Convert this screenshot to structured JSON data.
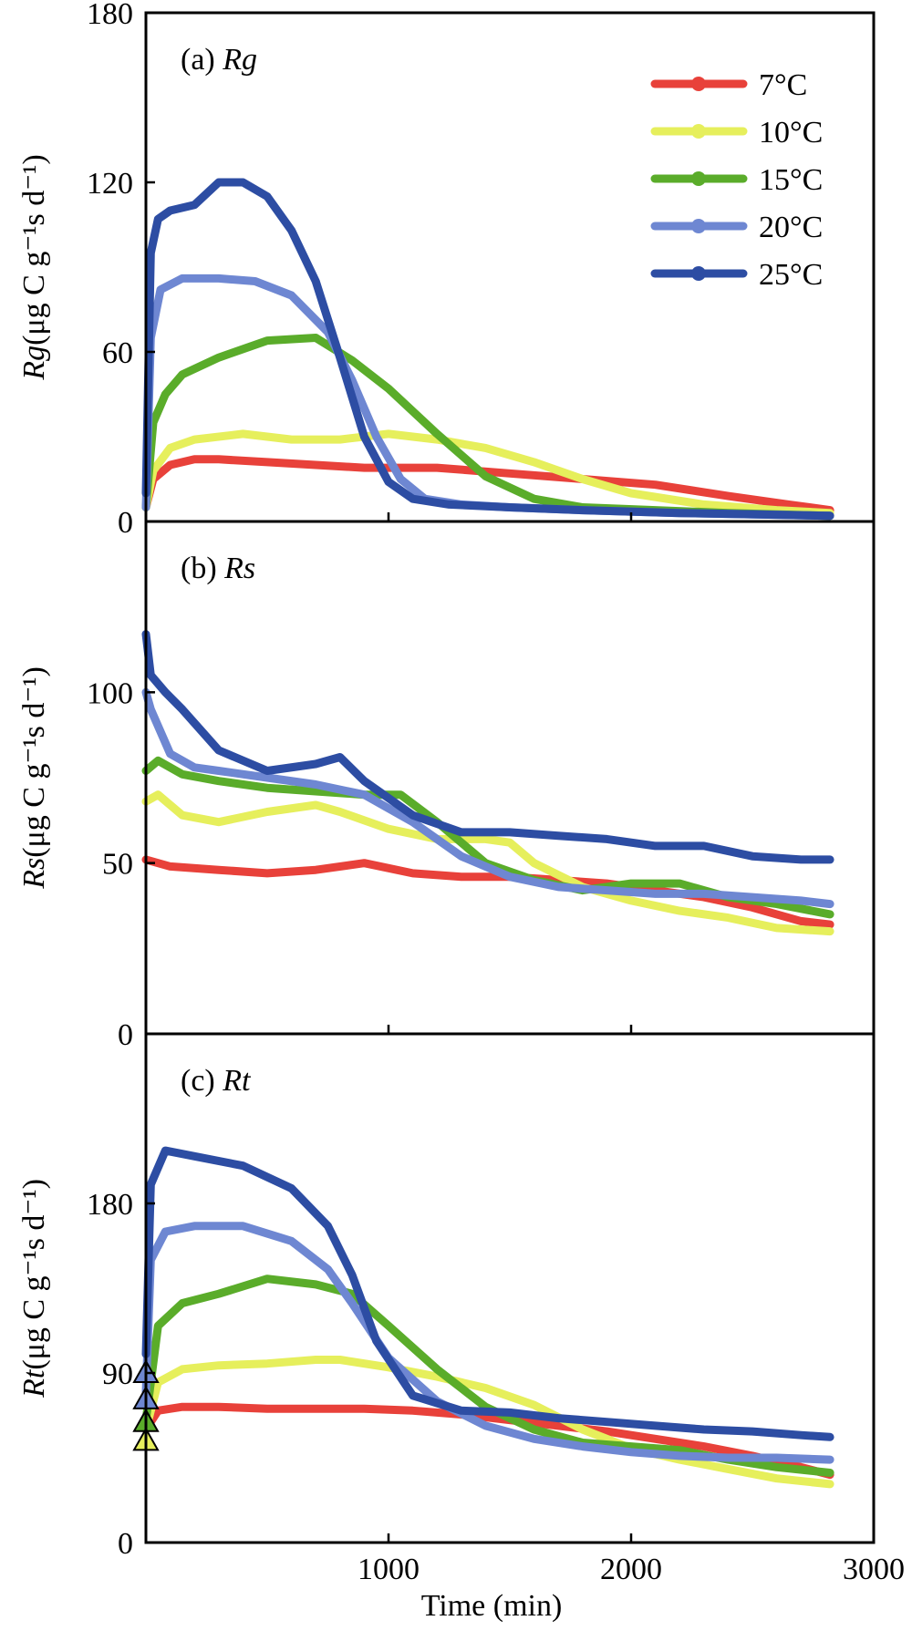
{
  "chart_data": [
    {
      "type": "line",
      "panel_label": "(a)",
      "panel_symbol": "Rg",
      "ylabel_symbol": "Rg",
      "ylabel_unit": "(μg C g⁻¹s d⁻¹)",
      "xlim": [
        0,
        3000
      ],
      "ylim": [
        0,
        180
      ],
      "yticks": [
        0,
        60,
        120,
        180
      ],
      "legend": {
        "placement": "top-right",
        "entries": [
          {
            "label": "7°C",
            "color": "#e8413a"
          },
          {
            "label": "10°C",
            "color": "#e6ef5c"
          },
          {
            "label": "15°C",
            "color": "#5aac2a"
          },
          {
            "label": "20°C",
            "color": "#6e87d2"
          },
          {
            "label": "25°C",
            "color": "#2d4da3"
          }
        ]
      },
      "series": [
        {
          "name": "7°C",
          "color": "#e8413a",
          "x": [
            0,
            30,
            100,
            200,
            300,
            500,
            700,
            900,
            1200,
            1500,
            1800,
            2100,
            2400,
            2650,
            2820
          ],
          "y": [
            5,
            15,
            20,
            22,
            22,
            21,
            20,
            19,
            19,
            17,
            15,
            13,
            9,
            6,
            4
          ]
        },
        {
          "name": "10°C",
          "color": "#e6ef5c",
          "x": [
            0,
            30,
            100,
            200,
            400,
            600,
            800,
            1000,
            1200,
            1400,
            1600,
            1800,
            2000,
            2300,
            2600,
            2820
          ],
          "y": [
            5,
            18,
            26,
            29,
            31,
            29,
            29,
            31,
            29,
            26,
            21,
            15,
            10,
            6,
            4,
            3
          ]
        },
        {
          "name": "15°C",
          "color": "#5aac2a",
          "x": [
            0,
            30,
            80,
            150,
            300,
            500,
            700,
            850,
            1000,
            1200,
            1400,
            1600,
            1800,
            2100,
            2400,
            2820
          ],
          "y": [
            5,
            35,
            45,
            52,
            58,
            64,
            65,
            57,
            47,
            31,
            16,
            8,
            5,
            4,
            3,
            2
          ]
        },
        {
          "name": "20°C",
          "color": "#6e87d2",
          "x": [
            0,
            20,
            60,
            150,
            300,
            450,
            600,
            750,
            850,
            950,
            1050,
            1150,
            1300,
            1500,
            1800,
            2200,
            2820
          ],
          "y": [
            5,
            65,
            82,
            86,
            86,
            85,
            80,
            67,
            50,
            30,
            15,
            8,
            6,
            5,
            4,
            3,
            2
          ]
        },
        {
          "name": "25°C",
          "color": "#2d4da3",
          "x": [
            0,
            20,
            50,
            100,
            200,
            300,
            400,
            500,
            600,
            700,
            800,
            900,
            1000,
            1100,
            1250,
            1500,
            1800,
            2200,
            2820
          ],
          "y": [
            10,
            95,
            107,
            110,
            112,
            120,
            120,
            115,
            103,
            85,
            58,
            30,
            14,
            8,
            6,
            5,
            4,
            3,
            2
          ]
        }
      ]
    },
    {
      "type": "line",
      "panel_label": "(b)",
      "panel_symbol": "Rs",
      "ylabel_symbol": "Rs",
      "ylabel_unit": "(μg C g⁻¹s d⁻¹)",
      "xlim": [
        0,
        3000
      ],
      "ylim": [
        0,
        150
      ],
      "yticks": [
        0,
        50,
        100
      ],
      "series": [
        {
          "name": "7°C",
          "color": "#e8413a",
          "x": [
            0,
            100,
            300,
            500,
            700,
            900,
            1100,
            1300,
            1500,
            1700,
            1900,
            2100,
            2300,
            2500,
            2700,
            2820
          ],
          "y": [
            51,
            49,
            48,
            47,
            48,
            50,
            47,
            46,
            46,
            45,
            44,
            42,
            40,
            37,
            33,
            32
          ]
        },
        {
          "name": "10°C",
          "color": "#e6ef5c",
          "x": [
            0,
            50,
            150,
            300,
            500,
            700,
            800,
            1000,
            1200,
            1400,
            1500,
            1600,
            1800,
            2000,
            2200,
            2400,
            2600,
            2820
          ],
          "y": [
            68,
            70,
            64,
            62,
            65,
            67,
            65,
            60,
            57,
            57,
            56,
            50,
            43,
            39,
            36,
            34,
            31,
            30
          ]
        },
        {
          "name": "15°C",
          "color": "#5aac2a",
          "x": [
            0,
            50,
            150,
            300,
            500,
            700,
            900,
            1050,
            1200,
            1400,
            1600,
            1800,
            2000,
            2200,
            2400,
            2600,
            2820
          ],
          "y": [
            77,
            80,
            76,
            74,
            72,
            71,
            70,
            70,
            62,
            50,
            45,
            42,
            44,
            44,
            40,
            38,
            35
          ]
        },
        {
          "name": "20°C",
          "color": "#6e87d2",
          "x": [
            0,
            20,
            100,
            200,
            300,
            500,
            700,
            900,
            1100,
            1300,
            1500,
            1700,
            1900,
            2100,
            2300,
            2500,
            2700,
            2820
          ],
          "y": [
            100,
            95,
            82,
            78,
            77,
            75,
            73,
            70,
            62,
            52,
            46,
            43,
            42,
            41,
            41,
            40,
            39,
            38
          ]
        },
        {
          "name": "25°C",
          "color": "#2d4da3",
          "x": [
            0,
            20,
            80,
            150,
            300,
            500,
            700,
            800,
            900,
            1100,
            1300,
            1500,
            1700,
            1900,
            2100,
            2300,
            2500,
            2700,
            2820
          ],
          "y": [
            117,
            105,
            100,
            95,
            83,
            77,
            79,
            81,
            74,
            64,
            59,
            59,
            58,
            57,
            55,
            55,
            52,
            51,
            51
          ]
        }
      ]
    },
    {
      "type": "line",
      "panel_label": "(c)",
      "panel_symbol": "Rt",
      "ylabel_symbol": "Rt",
      "ylabel_unit": "(μg C g⁻¹s d⁻¹)",
      "xlabel": "Time (min)",
      "xlim": [
        0,
        3000
      ],
      "ylim": [
        0,
        270
      ],
      "yticks": [
        0,
        90,
        180
      ],
      "xticks": [
        1000,
        2000,
        3000
      ],
      "series": [
        {
          "name": "7°C",
          "color": "#e8413a",
          "x": [
            0,
            50,
            150,
            300,
            500,
            700,
            900,
            1100,
            1300,
            1500,
            1700,
            1900,
            2100,
            2300,
            2500,
            2700,
            2820
          ],
          "y": [
            60,
            70,
            72,
            72,
            71,
            71,
            71,
            70,
            68,
            65,
            62,
            59,
            55,
            51,
            46,
            40,
            36
          ]
        },
        {
          "name": "10°C",
          "color": "#e6ef5c",
          "x": [
            0,
            50,
            150,
            300,
            500,
            700,
            800,
            1000,
            1200,
            1400,
            1600,
            1800,
            2000,
            2200,
            2400,
            2600,
            2820
          ],
          "y": [
            60,
            85,
            92,
            94,
            95,
            97,
            97,
            93,
            88,
            82,
            73,
            60,
            50,
            44,
            39,
            34,
            31
          ]
        },
        {
          "name": "15°C",
          "color": "#5aac2a",
          "x": [
            0,
            50,
            150,
            300,
            500,
            700,
            850,
            1000,
            1200,
            1400,
            1600,
            1800,
            2000,
            2200,
            2400,
            2600,
            2820
          ],
          "y": [
            65,
            115,
            127,
            132,
            140,
            137,
            132,
            115,
            92,
            72,
            60,
            53,
            51,
            49,
            44,
            40,
            37
          ]
        },
        {
          "name": "20°C",
          "color": "#6e87d2",
          "x": [
            0,
            20,
            80,
            200,
            400,
            600,
            750,
            850,
            1000,
            1200,
            1400,
            1600,
            1800,
            2000,
            2200,
            2400,
            2600,
            2820
          ],
          "y": [
            80,
            150,
            165,
            168,
            168,
            160,
            145,
            127,
            98,
            75,
            62,
            55,
            51,
            48,
            46,
            45,
            45,
            44
          ]
        },
        {
          "name": "25°C",
          "color": "#2d4da3",
          "x": [
            0,
            20,
            80,
            200,
            400,
            600,
            750,
            850,
            950,
            1100,
            1300,
            1500,
            1700,
            1900,
            2100,
            2300,
            2500,
            2700,
            2820
          ],
          "y": [
            100,
            190,
            208,
            205,
            200,
            188,
            168,
            142,
            107,
            78,
            70,
            69,
            66,
            64,
            62,
            60,
            59,
            57,
            56
          ]
        }
      ],
      "start_markers": [
        {
          "color": "#6e87d2",
          "y": 90
        },
        {
          "color": "#6e87d2",
          "y": 76
        },
        {
          "color": "#5aac2a",
          "y": 64
        },
        {
          "color": "#e6ef5c",
          "y": 54
        }
      ]
    }
  ]
}
